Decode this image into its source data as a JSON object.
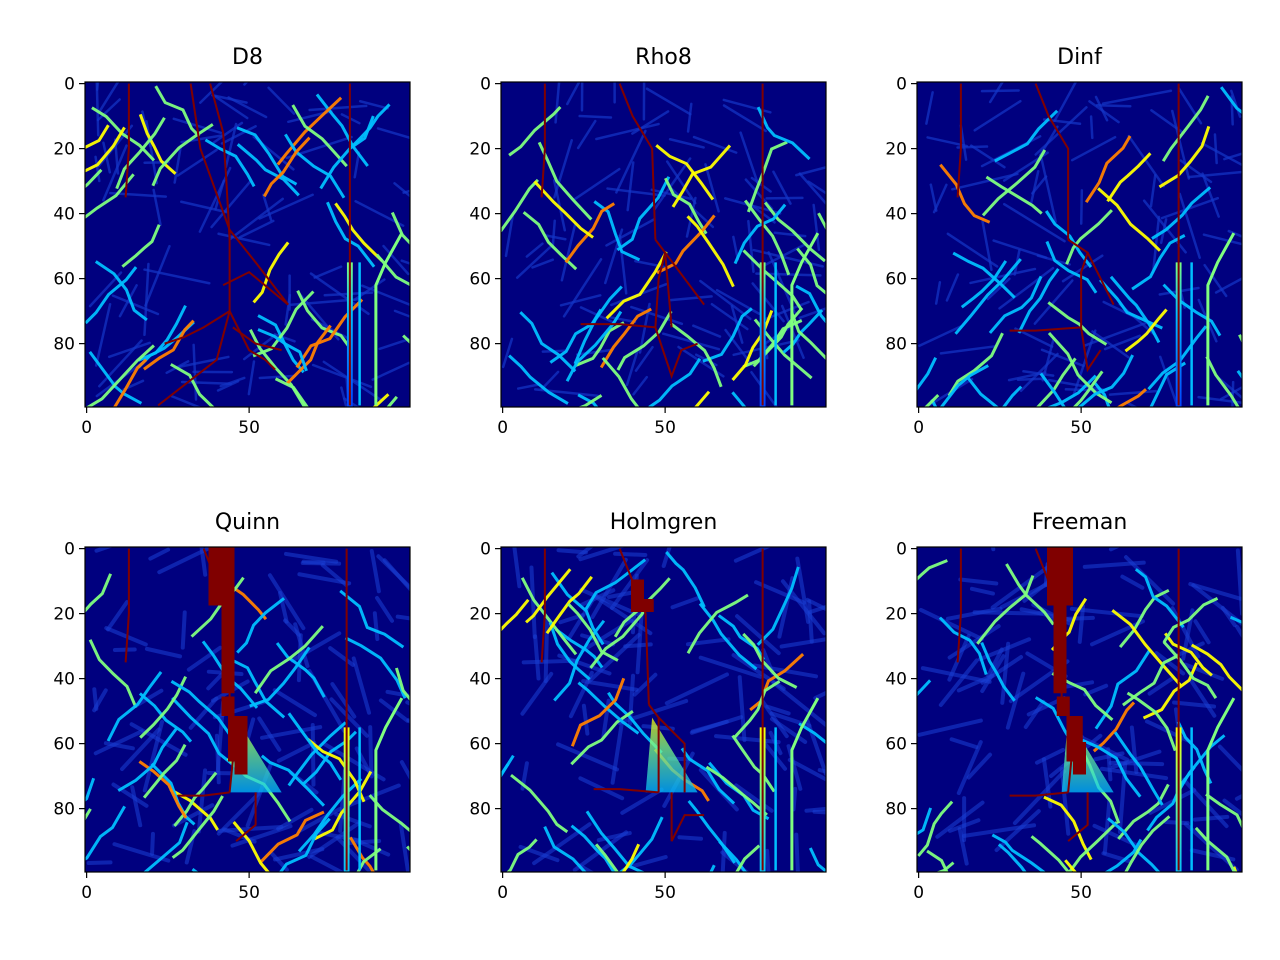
{
  "chart_data": [
    {
      "type": "heatmap",
      "title": "D8",
      "x_ticks": [
        0,
        50
      ],
      "y_ticks": [
        0,
        20,
        40,
        60,
        80
      ],
      "xlim": [
        0,
        99
      ],
      "ylim": [
        99,
        0
      ],
      "colormap": "jet",
      "highlight_color": "#800000",
      "paths": [
        [
          [
            13,
            0
          ],
          [
            13,
            20
          ],
          [
            12,
            35
          ]
        ],
        [
          [
            81,
            0
          ],
          [
            81,
            99
          ]
        ],
        [
          [
            32,
            0
          ],
          [
            35,
            20
          ],
          [
            44,
            45
          ],
          [
            44,
            70
          ]
        ],
        [
          [
            38,
            0
          ],
          [
            42,
            15
          ],
          [
            43,
            30
          ],
          [
            44,
            48
          ]
        ],
        [
          [
            44,
            45
          ],
          [
            52,
            55
          ],
          [
            62,
            68
          ]
        ],
        [
          [
            62,
            68
          ],
          [
            50,
            58
          ],
          [
            42,
            62
          ]
        ],
        [
          [
            44,
            70
          ],
          [
            36,
            75
          ],
          [
            30,
            78
          ],
          [
            24,
            80
          ]
        ],
        [
          [
            44,
            70
          ],
          [
            50,
            82
          ],
          [
            55,
            85
          ],
          [
            58,
            88
          ]
        ],
        [
          [
            45,
            75
          ],
          [
            52,
            80
          ],
          [
            60,
            82
          ]
        ],
        [
          [
            44,
            70
          ],
          [
            40,
            85
          ],
          [
            22,
            99
          ]
        ]
      ]
    },
    {
      "type": "heatmap",
      "title": "Rho8",
      "x_ticks": [
        0,
        50
      ],
      "y_ticks": [
        0,
        20,
        40,
        60,
        80
      ],
      "xlim": [
        0,
        99
      ],
      "ylim": [
        99,
        0
      ],
      "colormap": "jet",
      "highlight_color": "#800000",
      "paths": [
        [
          [
            13,
            0
          ],
          [
            13,
            20
          ],
          [
            12,
            35
          ]
        ],
        [
          [
            80,
            0
          ],
          [
            80,
            99
          ]
        ],
        [
          [
            36,
            0
          ],
          [
            40,
            10
          ],
          [
            46,
            20
          ],
          [
            47,
            48
          ]
        ],
        [
          [
            47,
            48
          ],
          [
            50,
            52
          ],
          [
            48,
            60
          ],
          [
            47,
            75
          ]
        ],
        [
          [
            50,
            52
          ],
          [
            62,
            68
          ]
        ],
        [
          [
            47,
            75
          ],
          [
            36,
            74
          ],
          [
            24,
            74
          ]
        ],
        [
          [
            47,
            75
          ],
          [
            52,
            90
          ],
          [
            55,
            82
          ],
          [
            60,
            80
          ]
        ],
        [
          [
            50,
            52
          ],
          [
            52,
            75
          ]
        ]
      ]
    },
    {
      "type": "heatmap",
      "title": "Dinf",
      "x_ticks": [
        0,
        50
      ],
      "y_ticks": [
        0,
        20,
        40,
        60,
        80
      ],
      "xlim": [
        0,
        99
      ],
      "ylim": [
        99,
        0
      ],
      "colormap": "jet",
      "highlight_color": "#800000",
      "paths": [
        [
          [
            13,
            0
          ],
          [
            13,
            20
          ],
          [
            12,
            35
          ]
        ],
        [
          [
            80,
            0
          ],
          [
            80,
            99
          ]
        ],
        [
          [
            36,
            0
          ],
          [
            40,
            10
          ],
          [
            46,
            20
          ],
          [
            46,
            48
          ]
        ],
        [
          [
            46,
            48
          ],
          [
            52,
            52
          ],
          [
            50,
            58
          ],
          [
            50,
            75
          ]
        ],
        [
          [
            52,
            52
          ],
          [
            60,
            68
          ]
        ],
        [
          [
            50,
            75
          ],
          [
            36,
            76
          ],
          [
            28,
            76
          ]
        ],
        [
          [
            50,
            75
          ],
          [
            52,
            88
          ],
          [
            56,
            82
          ]
        ]
      ]
    },
    {
      "type": "heatmap",
      "title": "Quinn",
      "x_ticks": [
        0,
        50
      ],
      "y_ticks": [
        0,
        20,
        40,
        60,
        80
      ],
      "xlim": [
        0,
        99
      ],
      "ylim": [
        99,
        0
      ],
      "colormap": "jet",
      "highlight_color": "#800000",
      "paths": [
        [
          [
            13,
            0
          ],
          [
            13,
            20
          ],
          [
            12,
            35
          ]
        ],
        [
          [
            80,
            0
          ],
          [
            80,
            99
          ]
        ],
        [
          [
            36,
            0
          ],
          [
            40,
            10
          ],
          [
            44,
            20
          ],
          [
            44,
            48
          ]
        ],
        [
          [
            44,
            48
          ],
          [
            46,
            55
          ],
          [
            44,
            75
          ]
        ],
        [
          [
            44,
            75
          ],
          [
            36,
            76
          ],
          [
            28,
            76
          ]
        ],
        [
          [
            52,
            75
          ],
          [
            52,
            85
          ],
          [
            46,
            90
          ]
        ]
      ],
      "filled": [
        [
          38,
          0,
          8,
          18
        ],
        [
          42,
          15,
          4,
          30
        ],
        [
          42,
          46,
          4,
          6
        ],
        [
          44,
          52,
          6,
          14
        ],
        [
          46,
          60,
          4,
          10
        ]
      ]
    },
    {
      "type": "heatmap",
      "title": "Holmgren",
      "x_ticks": [
        0,
        50
      ],
      "y_ticks": [
        0,
        20,
        40,
        60,
        80
      ],
      "xlim": [
        0,
        99
      ],
      "ylim": [
        99,
        0
      ],
      "colormap": "jet",
      "highlight_color": "#800000",
      "paths": [
        [
          [
            13,
            0
          ],
          [
            13,
            20
          ],
          [
            12,
            35
          ]
        ],
        [
          [
            80,
            0
          ],
          [
            80,
            99
          ]
        ],
        [
          [
            36,
            0
          ],
          [
            40,
            10
          ],
          [
            44,
            20
          ],
          [
            45,
            48
          ]
        ],
        [
          [
            45,
            48
          ],
          [
            48,
            52
          ],
          [
            48,
            60
          ],
          [
            48,
            75
          ]
        ],
        [
          [
            48,
            52
          ],
          [
            56,
            60
          ],
          [
            56,
            75
          ]
        ],
        [
          [
            48,
            75
          ],
          [
            36,
            74
          ],
          [
            28,
            74
          ]
        ],
        [
          [
            52,
            75
          ],
          [
            52,
            90
          ],
          [
            56,
            82
          ],
          [
            62,
            82
          ]
        ]
      ],
      "filled": [
        [
          40,
          10,
          4,
          10
        ],
        [
          44,
          16,
          3,
          4
        ]
      ]
    },
    {
      "type": "heatmap",
      "title": "Freeman",
      "x_ticks": [
        0,
        50
      ],
      "y_ticks": [
        0,
        20,
        40,
        60,
        80
      ],
      "xlim": [
        0,
        99
      ],
      "ylim": [
        99,
        0
      ],
      "colormap": "jet",
      "highlight_color": "#800000",
      "paths": [
        [
          [
            13,
            0
          ],
          [
            13,
            20
          ],
          [
            12,
            35
          ]
        ],
        [
          [
            80,
            0
          ],
          [
            80,
            99
          ]
        ],
        [
          [
            36,
            0
          ],
          [
            40,
            10
          ],
          [
            44,
            20
          ],
          [
            44,
            48
          ]
        ],
        [
          [
            44,
            48
          ],
          [
            48,
            55
          ],
          [
            46,
            75
          ]
        ],
        [
          [
            46,
            75
          ],
          [
            36,
            76
          ],
          [
            28,
            76
          ]
        ],
        [
          [
            52,
            75
          ],
          [
            52,
            85
          ],
          [
            46,
            90
          ]
        ]
      ],
      "filled": [
        [
          40,
          0,
          8,
          18
        ],
        [
          42,
          15,
          4,
          30
        ],
        [
          43,
          46,
          4,
          6
        ],
        [
          46,
          52,
          5,
          14
        ],
        [
          48,
          60,
          4,
          10
        ]
      ]
    }
  ]
}
